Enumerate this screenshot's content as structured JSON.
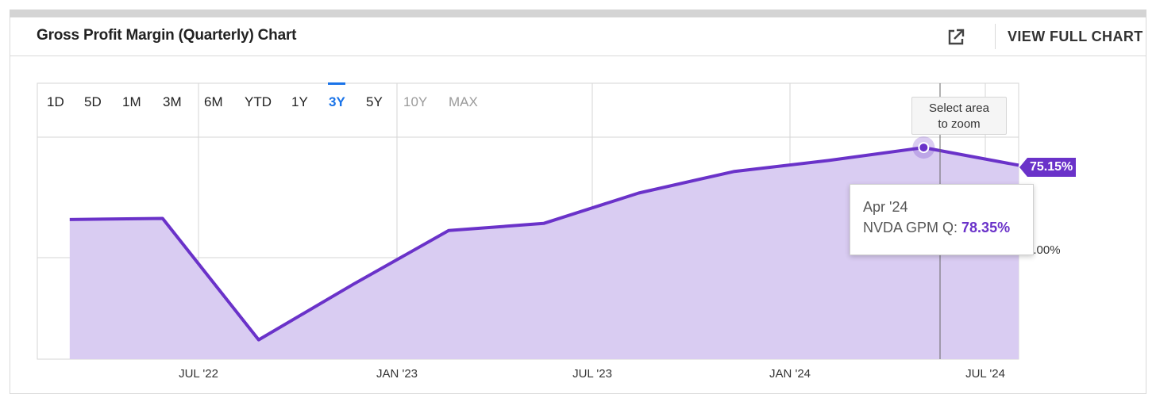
{
  "header": {
    "title": "Gross Profit Margin (Quarterly) Chart",
    "external_icon": "external-link-icon",
    "full_chart_label": "VIEW FULL CHART"
  },
  "ranges": [
    {
      "label": "1D",
      "state": "normal"
    },
    {
      "label": "5D",
      "state": "normal"
    },
    {
      "label": "1M",
      "state": "normal"
    },
    {
      "label": "3M",
      "state": "normal"
    },
    {
      "label": "6M",
      "state": "normal"
    },
    {
      "label": "YTD",
      "state": "normal"
    },
    {
      "label": "1Y",
      "state": "normal"
    },
    {
      "label": "3Y",
      "state": "active"
    },
    {
      "label": "5Y",
      "state": "normal"
    },
    {
      "label": "10Y",
      "state": "disabled"
    },
    {
      "label": "MAX",
      "state": "disabled"
    }
  ],
  "zoom_hint": {
    "line1": "Select area",
    "line2": "to zoom"
  },
  "last_value_badge": "75.15%",
  "y_axis_label": "0.00%",
  "tooltip": {
    "date": "Apr '24",
    "series_label": "NVDA GPM Q: ",
    "value": "78.35%"
  },
  "colors": {
    "line": "#6a32c9",
    "area": "#d9ccf2",
    "active_range": "#1a73e8"
  },
  "chart_data": {
    "type": "area",
    "title": "Gross Profit Margin (Quarterly) Chart",
    "xlabel": "",
    "ylabel": "",
    "x_ticks": [
      "JUL '22",
      "JAN '23",
      "JUL '23",
      "JAN '24",
      "JUL '24"
    ],
    "x_range": [
      "2021-12-31",
      "2024-07-28"
    ],
    "ylim": [
      40,
      90
    ],
    "grid": true,
    "series": [
      {
        "name": "NVDA GPM Q",
        "points": [
          {
            "x": "2022-01-31",
            "y": 65.3
          },
          {
            "x": "2022-04-30",
            "y": 65.5
          },
          {
            "x": "2022-07-31",
            "y": 43.5
          },
          {
            "x": "2022-10-30",
            "y": 53.6
          },
          {
            "x": "2023-01-29",
            "y": 63.3
          },
          {
            "x": "2023-04-30",
            "y": 64.6
          },
          {
            "x": "2023-07-30",
            "y": 70.1
          },
          {
            "x": "2023-10-29",
            "y": 74.0
          },
          {
            "x": "2024-01-28",
            "y": 76.0
          },
          {
            "x": "2024-04-28",
            "y": 78.35
          },
          {
            "x": "2024-07-28",
            "y": 75.15
          }
        ]
      }
    ]
  }
}
